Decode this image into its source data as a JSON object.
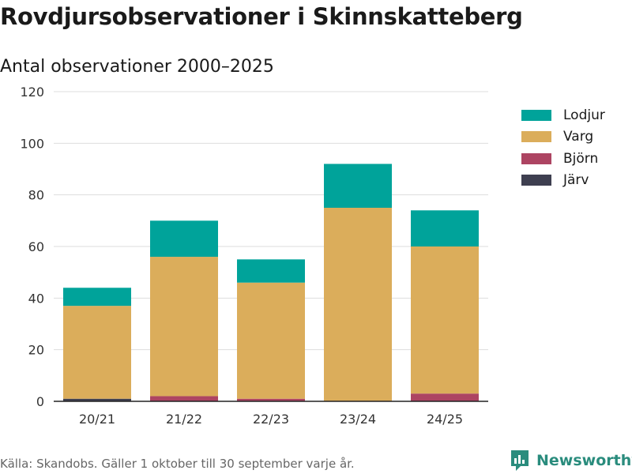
{
  "title": "Rovdjursobservationer i Skinnskatteberg",
  "subtitle": "Antal observationer 2000–2025",
  "footer": "Källa: Skandobs. Gäller 1 oktober till 30 september varje år.",
  "brand": "Newsworthy",
  "colors": {
    "lodjur": "#00a39a",
    "varg": "#dbad5b",
    "bjorn": "#ad4462",
    "jarv": "#3e3f50",
    "grid": "#dddddd",
    "axis": "#222222",
    "brand": "#2a8c7d"
  },
  "chart_data": {
    "type": "bar",
    "stacked": true,
    "categories": [
      "20/21",
      "21/22",
      "22/23",
      "23/24",
      "24/25"
    ],
    "series": [
      {
        "name": "Järv",
        "key": "jarv",
        "values": [
          1,
          0,
          0,
          0,
          0
        ]
      },
      {
        "name": "Björn",
        "key": "bjorn",
        "values": [
          0,
          2,
          1,
          0,
          3
        ]
      },
      {
        "name": "Varg",
        "key": "varg",
        "values": [
          36,
          54,
          45,
          75,
          57
        ]
      },
      {
        "name": "Lodjur",
        "key": "lodjur",
        "values": [
          7,
          14,
          9,
          17,
          14
        ]
      }
    ],
    "legend": [
      "Lodjur",
      "Varg",
      "Björn",
      "Järv"
    ],
    "yticks": [
      0,
      20,
      40,
      60,
      80,
      100,
      120
    ],
    "ylim": [
      0,
      120
    ],
    "xlabel": "",
    "ylabel": "",
    "grid": true,
    "legend_position": "right"
  }
}
